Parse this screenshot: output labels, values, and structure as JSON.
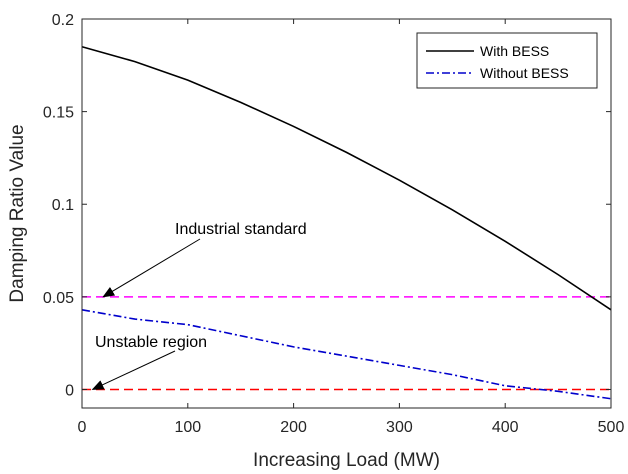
{
  "chart_data": {
    "type": "line",
    "title": "",
    "xlabel": "Increasing Load (MW)",
    "ylabel": "Damping Ratio Value",
    "xlim": [
      0,
      500
    ],
    "ylim": [
      -0.01,
      0.2
    ],
    "xticks": [
      0,
      100,
      200,
      300,
      400,
      500
    ],
    "yticks": [
      0,
      0.05,
      0.1,
      0.15,
      0.2
    ],
    "xtick_labels": [
      "0",
      "100",
      "200",
      "300",
      "400",
      "500"
    ],
    "ytick_labels": [
      "0",
      "0.05",
      "0.1",
      "0.15",
      "0.2"
    ],
    "grid": false,
    "legend_position": "top-right",
    "series": [
      {
        "name": "With BESS",
        "color": "#000000",
        "style": "solid",
        "x": [
          0,
          50,
          100,
          150,
          200,
          250,
          300,
          350,
          400,
          450,
          500
        ],
        "y": [
          0.185,
          0.177,
          0.167,
          0.155,
          0.142,
          0.128,
          0.113,
          0.097,
          0.08,
          0.062,
          0.043
        ]
      },
      {
        "name": "Without BESS",
        "color": "#0000CC",
        "style": "dashdot",
        "x": [
          0,
          50,
          100,
          150,
          200,
          250,
          300,
          350,
          400,
          450,
          500
        ],
        "y": [
          0.043,
          0.038,
          0.035,
          0.029,
          0.023,
          0.018,
          0.013,
          0.008,
          0.002,
          -0.001,
          -0.005
        ]
      }
    ],
    "reference_lines": [
      {
        "y": 0.05,
        "color": "#FF00FF",
        "style": "dashed"
      },
      {
        "y": 0,
        "color": "#FF0000",
        "style": "dashed"
      }
    ],
    "annotations": [
      {
        "text": "Industrial standard",
        "arrow_to": [
          20,
          0.05
        ]
      },
      {
        "text": "Unstable region",
        "arrow_to": [
          10,
          0
        ]
      }
    ]
  }
}
